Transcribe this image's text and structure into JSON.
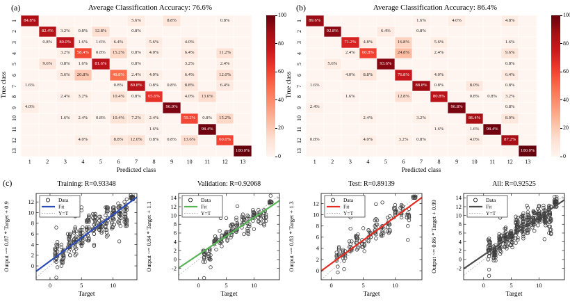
{
  "panels": {
    "a": "(a)",
    "b": "(b)",
    "c": "(c)"
  },
  "colors": {
    "heatmap_scale": [
      "#fff5f0",
      "#fee0d2",
      "#fcbba1",
      "#fc9272",
      "#fb6a4a",
      "#ef3b2c",
      "#cb181d",
      "#a50f15",
      "#67000d"
    ],
    "cell_text_dark": "#262626",
    "cell_text_light": "#ffffff",
    "point_stroke": "#1a1a1a",
    "yt_line": "#aaaaaa",
    "axis": "#333333"
  },
  "chart_data": [
    {
      "type": "heatmap",
      "id": "a",
      "panel_label": "(a)",
      "title": "Average Classification Accuracy: 76.6%",
      "average_accuracy": 76.6,
      "xlabel": "Predicted class",
      "ylabel": "True class",
      "class_labels": [
        "1",
        "2",
        "3",
        "4",
        "5",
        "6",
        "7",
        "8",
        "9",
        "10",
        "11",
        "12",
        "13"
      ],
      "colorbar_ticks": [
        100,
        80,
        60,
        40,
        20,
        0
      ],
      "values": [
        [
          84.8,
          0,
          0,
          0,
          0,
          0,
          5.6,
          0,
          8.8,
          0,
          0,
          0.8,
          0
        ],
        [
          0,
          82.4,
          3.2,
          0.8,
          12.8,
          0,
          0.8,
          0,
          0,
          0,
          0,
          0,
          0
        ],
        [
          0,
          0.8,
          80.0,
          1.6,
          1.6,
          6.4,
          0,
          5.6,
          0,
          4.0,
          0,
          0,
          0
        ],
        [
          0,
          0,
          3.2,
          58.4,
          0.8,
          15.2,
          0.8,
          4.0,
          0,
          6.4,
          0,
          11.2,
          0
        ],
        [
          0,
          9.6,
          0.8,
          1.6,
          81.6,
          0,
          0.8,
          0,
          0,
          3.2,
          0,
          2.4,
          0
        ],
        [
          0,
          0,
          5.6,
          20.8,
          0,
          48.8,
          2.4,
          4.0,
          0,
          6.4,
          0,
          12.0,
          0
        ],
        [
          1.6,
          0,
          0,
          0,
          0,
          0.8,
          80.8,
          0.8,
          0.8,
          8.8,
          0,
          6.4,
          0
        ],
        [
          0,
          0,
          2.4,
          3.2,
          0,
          10.4,
          0.8,
          65.6,
          0,
          4.0,
          13.6,
          0,
          0
        ],
        [
          4.0,
          0,
          0,
          0,
          0,
          0,
          0,
          0,
          96.0,
          0,
          0,
          0,
          0
        ],
        [
          0,
          0,
          1.6,
          2.4,
          0.8,
          10.4,
          7.2,
          2.4,
          0,
          59.2,
          0.8,
          15.2,
          0
        ],
        [
          0,
          0,
          0,
          0,
          0,
          0,
          0,
          1.6,
          0,
          0,
          98.4,
          0,
          0
        ],
        [
          0,
          0,
          0,
          4.0,
          0,
          8.8,
          12.0,
          0.8,
          0.8,
          13.6,
          0,
          60.0,
          0
        ],
        [
          0,
          0,
          0,
          0,
          0,
          0,
          0,
          0,
          0,
          0,
          0,
          0,
          100.0
        ]
      ]
    },
    {
      "type": "heatmap",
      "id": "b",
      "panel_label": "(b)",
      "title": "Average Classification Accuracy: 86.4%",
      "average_accuracy": 86.4,
      "xlabel": "Predicted class",
      "ylabel": "True class",
      "class_labels": [
        "1",
        "2",
        "3",
        "4",
        "5",
        "6",
        "7",
        "8",
        "9",
        "10",
        "11",
        "12",
        "13"
      ],
      "colorbar_ticks": [
        100,
        80,
        60,
        40,
        20,
        0
      ],
      "values": [
        [
          89.6,
          0,
          0,
          0,
          0,
          0,
          1.6,
          0,
          4.0,
          0,
          0,
          4.8,
          0
        ],
        [
          0,
          92.8,
          0,
          0,
          6.4,
          0,
          0.8,
          0,
          0,
          0,
          0,
          0,
          0
        ],
        [
          0,
          0,
          71.2,
          4.8,
          0,
          16.8,
          0,
          5.6,
          0,
          0,
          0,
          1.6,
          0
        ],
        [
          0,
          0,
          2.4,
          60.8,
          0,
          24.8,
          0,
          2.4,
          0,
          0,
          0,
          9.6,
          0
        ],
        [
          0,
          5.6,
          0,
          0,
          93.6,
          0,
          0,
          0,
          0,
          0,
          0,
          0.8,
          0
        ],
        [
          0,
          0,
          4.0,
          8.8,
          0,
          76.8,
          0,
          4.0,
          0,
          0,
          0,
          6.4,
          0
        ],
        [
          1.6,
          0,
          0,
          0,
          0,
          0,
          88.8,
          0.8,
          0,
          8.0,
          0,
          0.8,
          0
        ],
        [
          0,
          0,
          1.6,
          0,
          0,
          12.8,
          0,
          80.8,
          0,
          0.8,
          0.8,
          3.2,
          0
        ],
        [
          2.4,
          0,
          0,
          0,
          0,
          0,
          0,
          0,
          96.8,
          0,
          0,
          0.8,
          0
        ],
        [
          0,
          0,
          0,
          2.4,
          0,
          0,
          3.2,
          0,
          0,
          86.4,
          0,
          8.0,
          0
        ],
        [
          0,
          0,
          0,
          0,
          0,
          0,
          0,
          1.6,
          0,
          1.6,
          98.4,
          0,
          0
        ],
        [
          0.8,
          0,
          0,
          4.0,
          0,
          3.2,
          0.8,
          0,
          0,
          4.0,
          0,
          87.2,
          0
        ],
        [
          0,
          0,
          0,
          0,
          0,
          0,
          0,
          0,
          0,
          0,
          0,
          0,
          100.0
        ]
      ]
    },
    {
      "type": "scatter",
      "id": "training",
      "title": "Training: R=0.93348",
      "r": 0.93348,
      "xlabel": "Target",
      "ylabel": "Output ~= 0.87 * Target + 0.9",
      "fit": {
        "slope": 0.87,
        "intercept": 0.9,
        "color": "#2b4bba"
      },
      "legend": {
        "data": "Data",
        "fit": "Fit",
        "yt": "Y=T"
      },
      "xlim": [
        -2.2,
        13.8
      ],
      "ylim": [
        -2.6,
        13.6
      ],
      "xticks": [
        0,
        5,
        10
      ],
      "yticks": [
        0,
        2,
        4,
        6,
        8,
        10,
        12
      ],
      "seed": 7,
      "clusters": [
        [
          1,
          -0.4,
          5.0,
          26
        ],
        [
          2,
          -0.6,
          4.4,
          24
        ],
        [
          3,
          0.9,
          7.0,
          26
        ],
        [
          4,
          1.6,
          7.8,
          26
        ],
        [
          5,
          2.4,
          8.0,
          26
        ],
        [
          6,
          3.2,
          11.2,
          28
        ],
        [
          7,
          3.7,
          11.3,
          28
        ],
        [
          8,
          4.4,
          10.6,
          26
        ],
        [
          9,
          5.4,
          11.6,
          26
        ],
        [
          10,
          6.4,
          12.4,
          26
        ],
        [
          11,
          7.0,
          12.6,
          24
        ],
        [
          12,
          6.0,
          12.7,
          26
        ],
        [
          13,
          12.1,
          13.4,
          30
        ]
      ],
      "outliers": [
        [
          1,
          -2.2
        ],
        [
          1,
          7.2
        ],
        [
          4,
          9.3
        ],
        [
          5,
          10.4
        ],
        [
          5,
          11.0
        ],
        [
          11,
          4.6
        ]
      ]
    },
    {
      "type": "scatter",
      "id": "validation",
      "title": "Validation: R=0.92068",
      "r": 0.92068,
      "xlabel": "Target",
      "ylabel": "Output ~= 0.84 * Target + 1.1",
      "fit": {
        "slope": 0.84,
        "intercept": 1.1,
        "color": "#55b555"
      },
      "legend": {
        "data": "Data",
        "fit": "Fit",
        "yt": "Y=T"
      },
      "xlim": [
        -3.6,
        14.6
      ],
      "ylim": [
        -4.6,
        15.0
      ],
      "xticks": [
        0,
        5,
        10
      ],
      "yticks": [
        -2,
        0,
        2,
        4,
        6,
        8,
        10,
        12,
        14
      ],
      "seed": 11,
      "clusters": [
        [
          1,
          -1.2,
          3.3,
          14
        ],
        [
          2,
          -1.9,
          3.3,
          14
        ],
        [
          3,
          1.8,
          6.2,
          14
        ],
        [
          4,
          2.8,
          6.6,
          12
        ],
        [
          5,
          3.8,
          7.0,
          14
        ],
        [
          6,
          4.3,
          9.2,
          14
        ],
        [
          7,
          4.8,
          9.8,
          12
        ],
        [
          8,
          5.2,
          11.6,
          14
        ],
        [
          9,
          5.4,
          11.2,
          14
        ],
        [
          10,
          8.8,
          11.6,
          12
        ],
        [
          11,
          7.9,
          12.1,
          12
        ],
        [
          12,
          7.4,
          12.6,
          14
        ],
        [
          13,
          12.7,
          13.4,
          16
        ]
      ],
      "outliers": [
        [
          1,
          -4.2
        ],
        [
          4,
          9.4
        ],
        [
          5,
          9.4
        ],
        [
          7,
          12.1
        ],
        [
          10,
          6.9
        ],
        [
          13,
          14.5
        ]
      ]
    },
    {
      "type": "scatter",
      "id": "test",
      "title": "Test: R=0.89139",
      "r": 0.89139,
      "xlabel": "Target",
      "ylabel": "Output ~= 0.83 * Target + 1.3",
      "fit": {
        "slope": 0.83,
        "intercept": 1.3,
        "color": "#e42b20"
      },
      "legend": {
        "data": "Data",
        "fit": "Fit",
        "yt": "Y=T"
      },
      "xlim": [
        -1.6,
        14.2
      ],
      "ylim": [
        -1.6,
        13.8
      ],
      "xticks": [
        0,
        5,
        10
      ],
      "yticks": [
        0,
        2,
        4,
        6,
        8,
        10,
        12
      ],
      "seed": 23,
      "clusters": [
        [
          1,
          0.4,
          4.9,
          12
        ],
        [
          2,
          1.4,
          4.3,
          12
        ],
        [
          3,
          2.2,
          6.0,
          12
        ],
        [
          4,
          3.4,
          8.6,
          14
        ],
        [
          5,
          3.0,
          6.0,
          12
        ],
        [
          6,
          4.4,
          8.2,
          12
        ],
        [
          7,
          5.2,
          9.7,
          14
        ],
        [
          8,
          5.6,
          9.0,
          12
        ],
        [
          9,
          5.8,
          10.6,
          14
        ],
        [
          10,
          8.9,
          12.6,
          12
        ],
        [
          11,
          8.9,
          12.3,
          12
        ],
        [
          12,
          7.4,
          12.0,
          12
        ],
        [
          13,
          12.8,
          13.5,
          14
        ]
      ],
      "outliers": [
        [
          1,
          -0.3
        ],
        [
          2,
          0.3
        ],
        [
          3,
          9.5
        ],
        [
          3,
          7.5
        ],
        [
          5,
          7.6
        ],
        [
          7,
          11.9
        ],
        [
          8,
          12.2
        ],
        [
          12,
          5.5
        ]
      ]
    },
    {
      "type": "scatter",
      "id": "all",
      "title": "All: R=0.92525",
      "r": 0.92525,
      "xlabel": "Target",
      "ylabel": "Output ~= 0.86 * Target + 0.99",
      "fit": {
        "slope": 0.86,
        "intercept": 0.99,
        "color": "#4a4a4a"
      },
      "legend": {
        "data": "Data",
        "fit": "Fit",
        "yt": "Y=T"
      },
      "xlim": [
        -3.6,
        14.6
      ],
      "ylim": [
        -4.6,
        15.0
      ],
      "xticks": [
        0,
        5,
        10
      ],
      "yticks": [
        -2,
        0,
        2,
        4,
        6,
        8,
        10,
        12,
        14
      ],
      "seed": 31,
      "clusters": [
        [
          1,
          -0.6,
          5.1,
          30
        ],
        [
          2,
          -0.7,
          4.5,
          30
        ],
        [
          3,
          1.0,
          7.0,
          30
        ],
        [
          4,
          1.6,
          8.7,
          30
        ],
        [
          5,
          2.5,
          8.0,
          30
        ],
        [
          6,
          3.3,
          11.2,
          32
        ],
        [
          7,
          3.8,
          11.9,
          32
        ],
        [
          8,
          4.4,
          12.3,
          30
        ],
        [
          9,
          5.4,
          12.8,
          30
        ],
        [
          10,
          6.5,
          12.9,
          30
        ],
        [
          11,
          7.0,
          12.9,
          28
        ],
        [
          12,
          4.6,
          13.1,
          30
        ],
        [
          13,
          11.6,
          14.5,
          34
        ]
      ],
      "outliers": [
        [
          1,
          -2.3
        ],
        [
          1,
          -3.7
        ],
        [
          3,
          9.5
        ],
        [
          11,
          4.6
        ]
      ]
    }
  ]
}
